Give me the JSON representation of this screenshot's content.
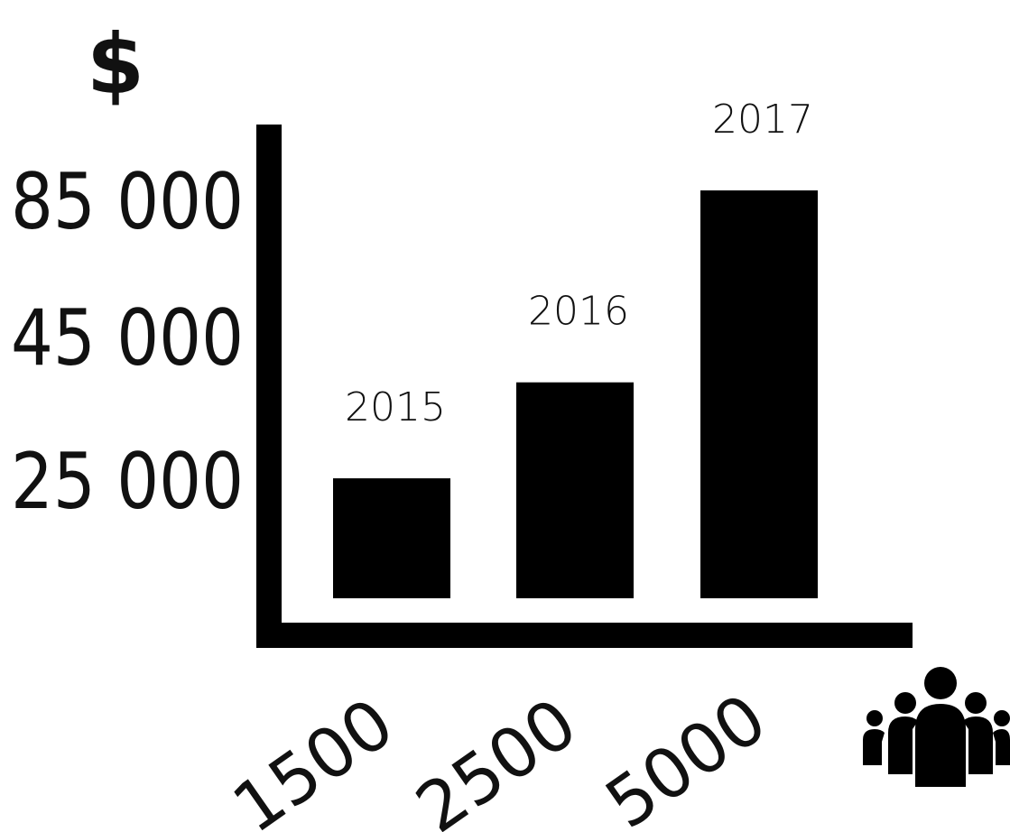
{
  "chart_data": {
    "type": "bar",
    "ylabel": "$",
    "y_ticks": [
      {
        "label": "85 000",
        "value": 85000
      },
      {
        "label": "45 000",
        "value": 45000
      },
      {
        "label": "25 000",
        "value": 25000
      }
    ],
    "categories": [
      "1500",
      "2500",
      "5000"
    ],
    "values": [
      25000,
      45000,
      85000
    ],
    "bar_labels": [
      "2015",
      "2016",
      "2017"
    ],
    "x_icon": "people-group-icon",
    "colors": {
      "bar": "#000000",
      "axis": "#000000",
      "text": "#111111"
    }
  }
}
